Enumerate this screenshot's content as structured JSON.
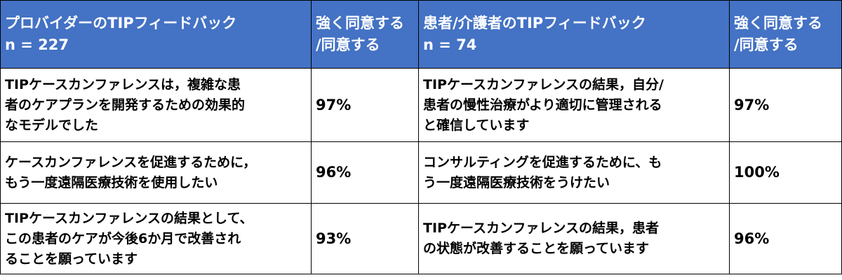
{
  "header": {
    "provider_title": "プロバイダーのTIPフィードバック",
    "provider_n": "n = 227",
    "provider_agree_line1": "強く同意する",
    "provider_agree_line2": "/同意する",
    "patient_title": "患者/介護者のTIPフィードバック",
    "patient_n": "n = 74",
    "patient_agree_line1": "強く同意する",
    "patient_agree_line2": "/同意する"
  },
  "rows": [
    {
      "provider_lines": [
        "TIPケースカンファレンスは，複雑な患",
        "者のケアプランを開発するための効果的",
        "なモデルでした"
      ],
      "provider_pct": "97%",
      "patient_lines": [
        "TIPケースカンファレンスの結果，自分/",
        "患者の慢性治療がより適切に管理される",
        "と確信しています"
      ],
      "patient_pct": "97%"
    },
    {
      "provider_lines": [
        "ケースカンファレンスを促進するために，",
        "もう一度遠隔医療技術を使用したい"
      ],
      "provider_pct": "96%",
      "patient_lines": [
        "コンサルティングを促進するために、も",
        "う一度遠隔医療技術をうけたい"
      ],
      "patient_pct": "100%"
    },
    {
      "provider_lines": [
        "TIPケースカンファレンスの結果として、",
        "この患者のケアが今後6か月で改善され",
        "ることを願っています"
      ],
      "provider_pct": "93%",
      "patient_lines": [
        "TIPケースカンファレンスの結果，患者",
        "の状態が改善することを願っています"
      ],
      "patient_pct": "96%"
    }
  ],
  "colors": {
    "header_bg": "#4472c4",
    "header_text": "#ffffff",
    "border": "#000000"
  }
}
